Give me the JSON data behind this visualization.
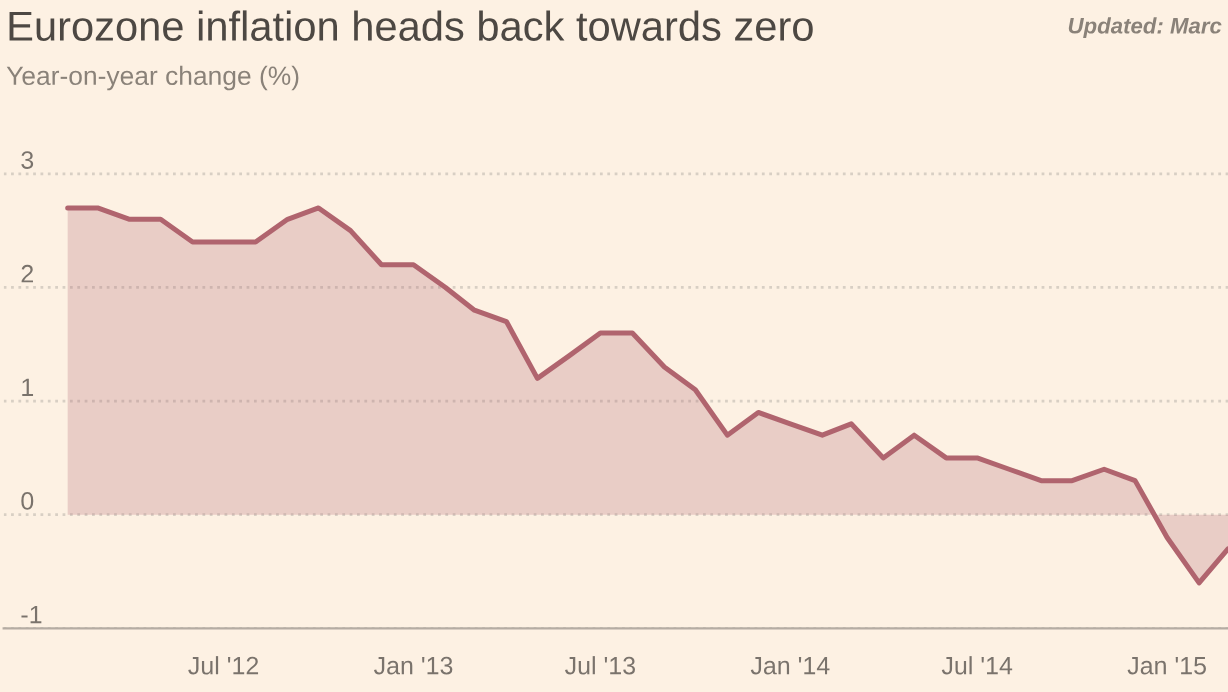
{
  "chart_data": {
    "type": "area",
    "title": "Eurozone inflation heads back towards zero",
    "subtitle": "Year-on-year change (%)",
    "annotations": [
      "Updated: Marc"
    ],
    "x": [
      "2012-02",
      "2012-03",
      "2012-04",
      "2012-05",
      "2012-06",
      "2012-07",
      "2012-08",
      "2012-09",
      "2012-10",
      "2012-11",
      "2012-12",
      "2013-01",
      "2013-02",
      "2013-03",
      "2013-04",
      "2013-05",
      "2013-06",
      "2013-07",
      "2013-08",
      "2013-09",
      "2013-10",
      "2013-11",
      "2013-12",
      "2014-01",
      "2014-02",
      "2014-03",
      "2014-04",
      "2014-05",
      "2014-06",
      "2014-07",
      "2014-08",
      "2014-09",
      "2014-10",
      "2014-11",
      "2014-12",
      "2015-01",
      "2015-02",
      "2015-03"
    ],
    "values": [
      2.7,
      2.7,
      2.6,
      2.6,
      2.4,
      2.4,
      2.4,
      2.6,
      2.7,
      2.5,
      2.2,
      2.2,
      2.0,
      1.8,
      1.7,
      1.2,
      1.4,
      1.6,
      1.6,
      1.3,
      1.1,
      0.7,
      0.9,
      0.8,
      0.7,
      0.8,
      0.5,
      0.7,
      0.5,
      0.5,
      0.4,
      0.3,
      0.3,
      0.4,
      0.3,
      -0.2,
      -0.6,
      -0.3
    ],
    "color": "#b0646e",
    "xlim": [
      "2011-12-01",
      "2015-03-01"
    ],
    "xticks": [
      {
        "value": "2012-07",
        "label": "Jul '12"
      },
      {
        "value": "2013-01",
        "label": "Jan '13"
      },
      {
        "value": "2013-07",
        "label": "Jul '13"
      },
      {
        "value": "2014-01",
        "label": "Jan '14"
      },
      {
        "value": "2014-07",
        "label": "Jul '14"
      },
      {
        "value": "2015-01",
        "label": "Jan '15"
      }
    ],
    "ylim": [
      -1,
      4.53
    ],
    "yticks": [
      -1,
      0,
      1,
      2,
      3
    ],
    "grid": "y"
  }
}
